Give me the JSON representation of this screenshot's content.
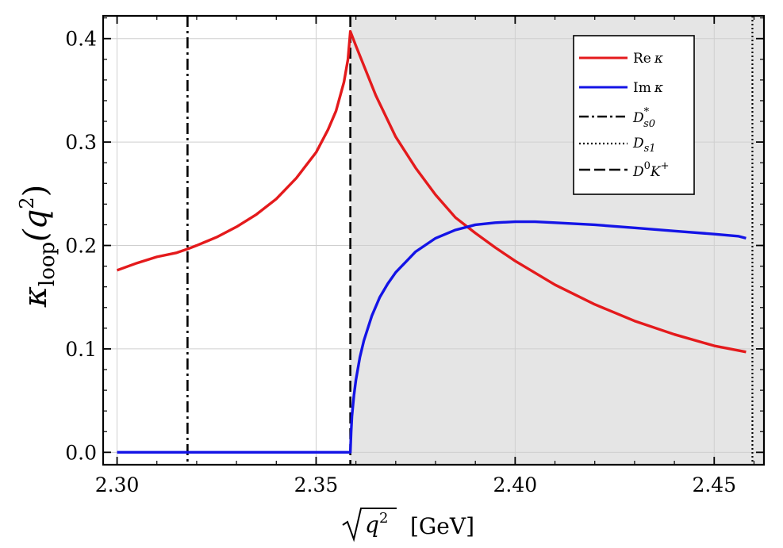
{
  "chart_data": {
    "type": "line",
    "xlabel": {
      "sqrt": "q",
      "sup": "2",
      "units": "[GeV]"
    },
    "ylabel": {
      "base": "κ",
      "sub": "loop",
      "arg": "(q",
      "sup": "2",
      "close": ")"
    },
    "xlim": [
      2.2965,
      2.4625
    ],
    "ylim": [
      -0.012,
      0.422
    ],
    "grid": true,
    "legend_position": "top-right",
    "x_ticks": [
      {
        "value": 2.3,
        "label": "2.30"
      },
      {
        "value": 2.35,
        "label": "2.35"
      },
      {
        "value": 2.4,
        "label": "2.40"
      },
      {
        "value": 2.45,
        "label": "2.45"
      }
    ],
    "y_ticks": [
      {
        "value": 0.0,
        "label": "0.0"
      },
      {
        "value": 0.1,
        "label": "0.1"
      },
      {
        "value": 0.2,
        "label": "0.2"
      },
      {
        "value": 0.3,
        "label": "0.3"
      },
      {
        "value": 0.4,
        "label": "0.4"
      }
    ],
    "shaded_region": {
      "x_start": 2.3586,
      "x_end": 2.4625,
      "color": "#e5e5e5"
    },
    "series": [
      {
        "key": "re",
        "legend": {
          "main": "Re",
          "symbol": "κ"
        },
        "color": "#e41a1c",
        "x": [
          2.3,
          2.305,
          2.31,
          2.315,
          2.318,
          2.32,
          2.325,
          2.33,
          2.335,
          2.34,
          2.345,
          2.35,
          2.353,
          2.355,
          2.357,
          2.358,
          2.3586,
          2.36,
          2.365,
          2.37,
          2.375,
          2.38,
          2.385,
          2.39,
          2.395,
          2.4,
          2.41,
          2.42,
          2.43,
          2.44,
          2.45,
          2.458
        ],
        "y": [
          0.176,
          0.183,
          0.189,
          0.193,
          0.197,
          0.2,
          0.208,
          0.218,
          0.23,
          0.245,
          0.265,
          0.29,
          0.312,
          0.33,
          0.358,
          0.38,
          0.407,
          0.393,
          0.345,
          0.305,
          0.275,
          0.249,
          0.227,
          0.212,
          0.198,
          0.185,
          0.162,
          0.143,
          0.127,
          0.114,
          0.103,
          0.097
        ]
      },
      {
        "key": "im",
        "legend": {
          "main": "Im",
          "symbol": "κ"
        },
        "color": "#1414e6",
        "x": [
          2.3,
          2.3586,
          2.3588,
          2.359,
          2.3595,
          2.36,
          2.361,
          2.362,
          2.364,
          2.366,
          2.368,
          2.37,
          2.375,
          2.38,
          2.385,
          2.39,
          2.395,
          2.4,
          2.405,
          2.41,
          2.42,
          2.43,
          2.44,
          2.45,
          2.456,
          2.458
        ],
        "y": [
          0.0,
          0.0,
          0.02,
          0.035,
          0.055,
          0.07,
          0.092,
          0.108,
          0.132,
          0.15,
          0.163,
          0.174,
          0.194,
          0.207,
          0.215,
          0.22,
          0.222,
          0.223,
          0.223,
          0.222,
          0.22,
          0.217,
          0.214,
          0.211,
          0.209,
          0.207
        ]
      }
    ],
    "vertical_lines": [
      {
        "key": "ds0",
        "x": 2.3177,
        "style": "dashdot",
        "legend": {
          "main": "D",
          "sup": "*",
          "sub": "s0"
        }
      },
      {
        "key": "ds1",
        "x": 2.4596,
        "style": "dotted",
        "legend": {
          "main": "D",
          "sub": "s1"
        }
      },
      {
        "key": "d0k",
        "x": 2.3586,
        "style": "dashed",
        "legend": {
          "main": "D",
          "sup": "0",
          "main2": "K",
          "sup2": "+"
        }
      }
    ]
  }
}
